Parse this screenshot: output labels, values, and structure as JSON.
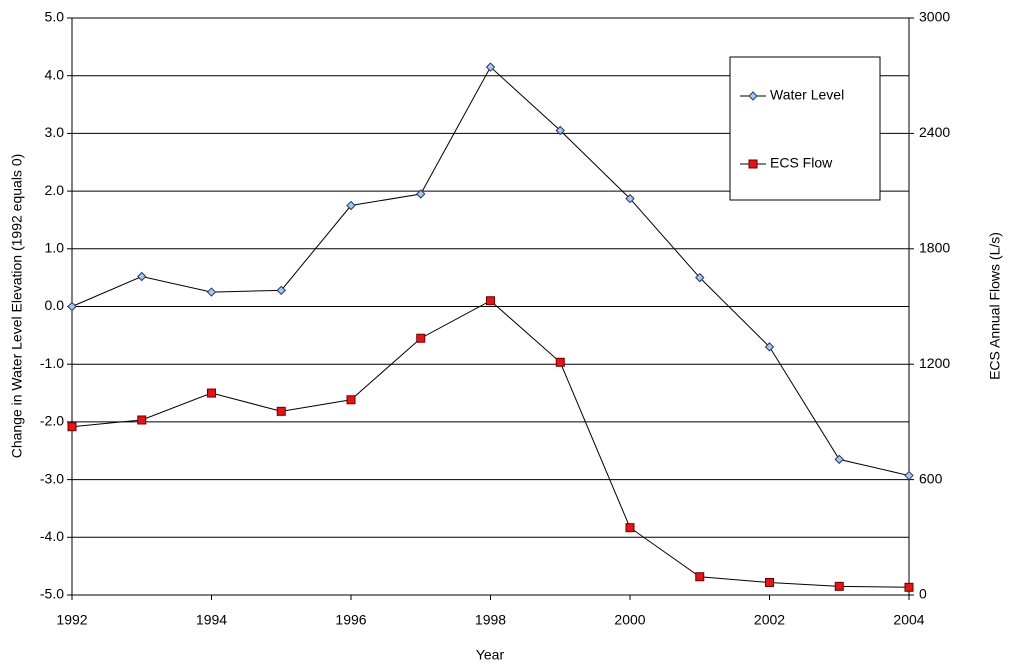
{
  "chart_data": {
    "type": "line",
    "x_label": "Year",
    "y_label": "Change in Water Level Elevation (1992 equals 0)",
    "y2_label": "ECS Annual Flows (L/s)",
    "x": [
      1992,
      1993,
      1994,
      1995,
      1996,
      1997,
      1998,
      1999,
      2000,
      2001,
      2002,
      2003,
      2004
    ],
    "series": [
      {
        "name": "Water Level",
        "color": "#99ccff",
        "marker": "diamond",
        "values": [
          0.0,
          0.52,
          0.25,
          0.28,
          1.75,
          1.95,
          4.15,
          3.05,
          1.87,
          0.5,
          -0.7,
          -2.65,
          -2.93
        ]
      },
      {
        "name": "ECS Flow",
        "color": "#ee1111",
        "marker": "square",
        "axis": "y2",
        "values": [
          875,
          910,
          1050,
          955,
          1015,
          1335,
          1530,
          1210,
          350,
          95,
          65,
          45,
          40
        ]
      }
    ],
    "xlim": [
      1992,
      2004
    ],
    "xticks": [
      1992,
      1994,
      1996,
      1998,
      2000,
      2002,
      2004
    ],
    "ylim": [
      -5,
      5
    ],
    "yticks": [
      {
        "value": -5,
        "label": "-5.0"
      },
      {
        "value": -4,
        "label": "-4.0"
      },
      {
        "value": -3,
        "label": "-3.0"
      },
      {
        "value": -2,
        "label": "-2.0"
      },
      {
        "value": -1,
        "label": "-1.0"
      },
      {
        "value": 0,
        "label": "0.0"
      },
      {
        "value": 1,
        "label": "1.0"
      },
      {
        "value": 2,
        "label": "2.0"
      },
      {
        "value": 3,
        "label": "3.0"
      },
      {
        "value": 4,
        "label": "4.0"
      },
      {
        "value": 5,
        "label": "5.0"
      }
    ],
    "y2lim": [
      0,
      3000
    ],
    "y2ticks": [
      0,
      600,
      1200,
      1800,
      2400,
      3000
    ],
    "grid": true,
    "legend": "upper right"
  }
}
